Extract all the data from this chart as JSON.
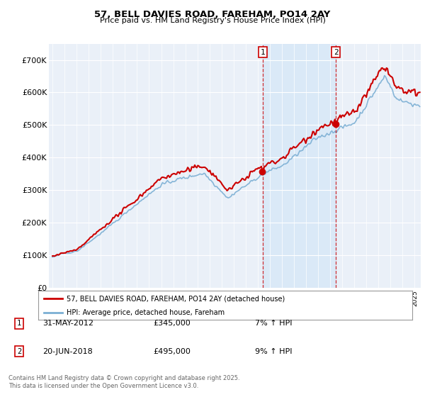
{
  "title_line1": "57, BELL DAVIES ROAD, FAREHAM, PO14 2AY",
  "title_line2": "Price paid vs. HM Land Registry's House Price Index (HPI)",
  "legend_label1": "57, BELL DAVIES ROAD, FAREHAM, PO14 2AY (detached house)",
  "legend_label2": "HPI: Average price, detached house, Fareham",
  "annotation1_label": "1",
  "annotation1_date": "31-MAY-2012",
  "annotation1_price": "£345,000",
  "annotation1_hpi": "7% ↑ HPI",
  "annotation1_year": 2012.42,
  "annotation1_value": 345000,
  "annotation2_label": "2",
  "annotation2_date": "20-JUN-2018",
  "annotation2_price": "£495,000",
  "annotation2_hpi": "9% ↑ HPI",
  "annotation2_year": 2018.47,
  "annotation2_value": 495000,
  "footer": "Contains HM Land Registry data © Crown copyright and database right 2025.\nThis data is licensed under the Open Government Licence v3.0.",
  "hpi_color": "#7bafd4",
  "price_color": "#cc0000",
  "annotation_box_color": "#cc0000",
  "background_color": "#ffffff",
  "plot_bg_color": "#eaf0f8",
  "hpi_fill_color": "#d6e8f7",
  "ylim": [
    0,
    750000
  ],
  "yticks": [
    0,
    100000,
    200000,
    300000,
    400000,
    500000,
    600000,
    700000
  ],
  "ytick_labels": [
    "£0",
    "£100K",
    "£200K",
    "£300K",
    "£400K",
    "£500K",
    "£600K",
    "£700K"
  ],
  "xlim_start": 1994.7,
  "xlim_end": 2025.5,
  "seed": 42
}
